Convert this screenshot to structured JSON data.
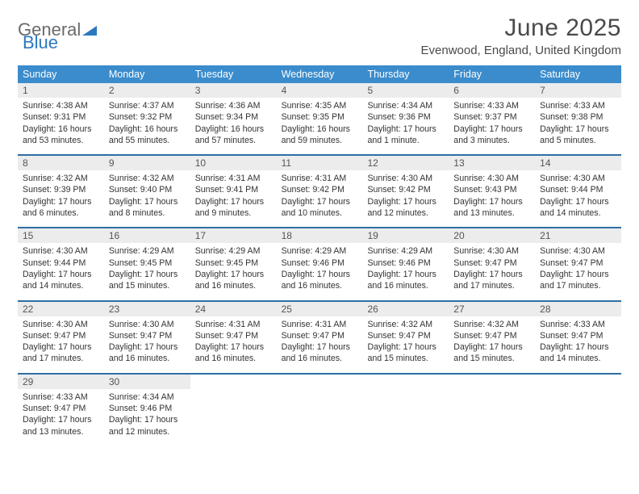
{
  "brand": {
    "part1": "General",
    "part2": "Blue"
  },
  "header": {
    "month_title": "June 2025",
    "location": "Evenwood, England, United Kingdom"
  },
  "colors": {
    "header_bg": "#3b8ccc",
    "week_divider": "#2f6fa3",
    "daynum_bg": "#ececec",
    "text": "#333333"
  },
  "daynames": [
    "Sunday",
    "Monday",
    "Tuesday",
    "Wednesday",
    "Thursday",
    "Friday",
    "Saturday"
  ],
  "layout": {
    "first_weekday_index": 0,
    "num_days": 30
  },
  "days": {
    "1": {
      "sunrise": "4:38 AM",
      "sunset": "9:31 PM",
      "daylight": "16 hours and 53 minutes."
    },
    "2": {
      "sunrise": "4:37 AM",
      "sunset": "9:32 PM",
      "daylight": "16 hours and 55 minutes."
    },
    "3": {
      "sunrise": "4:36 AM",
      "sunset": "9:34 PM",
      "daylight": "16 hours and 57 minutes."
    },
    "4": {
      "sunrise": "4:35 AM",
      "sunset": "9:35 PM",
      "daylight": "16 hours and 59 minutes."
    },
    "5": {
      "sunrise": "4:34 AM",
      "sunset": "9:36 PM",
      "daylight": "17 hours and 1 minute."
    },
    "6": {
      "sunrise": "4:33 AM",
      "sunset": "9:37 PM",
      "daylight": "17 hours and 3 minutes."
    },
    "7": {
      "sunrise": "4:33 AM",
      "sunset": "9:38 PM",
      "daylight": "17 hours and 5 minutes."
    },
    "8": {
      "sunrise": "4:32 AM",
      "sunset": "9:39 PM",
      "daylight": "17 hours and 6 minutes."
    },
    "9": {
      "sunrise": "4:32 AM",
      "sunset": "9:40 PM",
      "daylight": "17 hours and 8 minutes."
    },
    "10": {
      "sunrise": "4:31 AM",
      "sunset": "9:41 PM",
      "daylight": "17 hours and 9 minutes."
    },
    "11": {
      "sunrise": "4:31 AM",
      "sunset": "9:42 PM",
      "daylight": "17 hours and 10 minutes."
    },
    "12": {
      "sunrise": "4:30 AM",
      "sunset": "9:42 PM",
      "daylight": "17 hours and 12 minutes."
    },
    "13": {
      "sunrise": "4:30 AM",
      "sunset": "9:43 PM",
      "daylight": "17 hours and 13 minutes."
    },
    "14": {
      "sunrise": "4:30 AM",
      "sunset": "9:44 PM",
      "daylight": "17 hours and 14 minutes."
    },
    "15": {
      "sunrise": "4:30 AM",
      "sunset": "9:44 PM",
      "daylight": "17 hours and 14 minutes."
    },
    "16": {
      "sunrise": "4:29 AM",
      "sunset": "9:45 PM",
      "daylight": "17 hours and 15 minutes."
    },
    "17": {
      "sunrise": "4:29 AM",
      "sunset": "9:45 PM",
      "daylight": "17 hours and 16 minutes."
    },
    "18": {
      "sunrise": "4:29 AM",
      "sunset": "9:46 PM",
      "daylight": "17 hours and 16 minutes."
    },
    "19": {
      "sunrise": "4:29 AM",
      "sunset": "9:46 PM",
      "daylight": "17 hours and 16 minutes."
    },
    "20": {
      "sunrise": "4:30 AM",
      "sunset": "9:47 PM",
      "daylight": "17 hours and 17 minutes."
    },
    "21": {
      "sunrise": "4:30 AM",
      "sunset": "9:47 PM",
      "daylight": "17 hours and 17 minutes."
    },
    "22": {
      "sunrise": "4:30 AM",
      "sunset": "9:47 PM",
      "daylight": "17 hours and 17 minutes."
    },
    "23": {
      "sunrise": "4:30 AM",
      "sunset": "9:47 PM",
      "daylight": "17 hours and 16 minutes."
    },
    "24": {
      "sunrise": "4:31 AM",
      "sunset": "9:47 PM",
      "daylight": "17 hours and 16 minutes."
    },
    "25": {
      "sunrise": "4:31 AM",
      "sunset": "9:47 PM",
      "daylight": "17 hours and 16 minutes."
    },
    "26": {
      "sunrise": "4:32 AM",
      "sunset": "9:47 PM",
      "daylight": "17 hours and 15 minutes."
    },
    "27": {
      "sunrise": "4:32 AM",
      "sunset": "9:47 PM",
      "daylight": "17 hours and 15 minutes."
    },
    "28": {
      "sunrise": "4:33 AM",
      "sunset": "9:47 PM",
      "daylight": "17 hours and 14 minutes."
    },
    "29": {
      "sunrise": "4:33 AM",
      "sunset": "9:47 PM",
      "daylight": "17 hours and 13 minutes."
    },
    "30": {
      "sunrise": "4:34 AM",
      "sunset": "9:46 PM",
      "daylight": "17 hours and 12 minutes."
    }
  },
  "labels": {
    "sunrise": "Sunrise: ",
    "sunset": "Sunset: ",
    "daylight": "Daylight: "
  }
}
